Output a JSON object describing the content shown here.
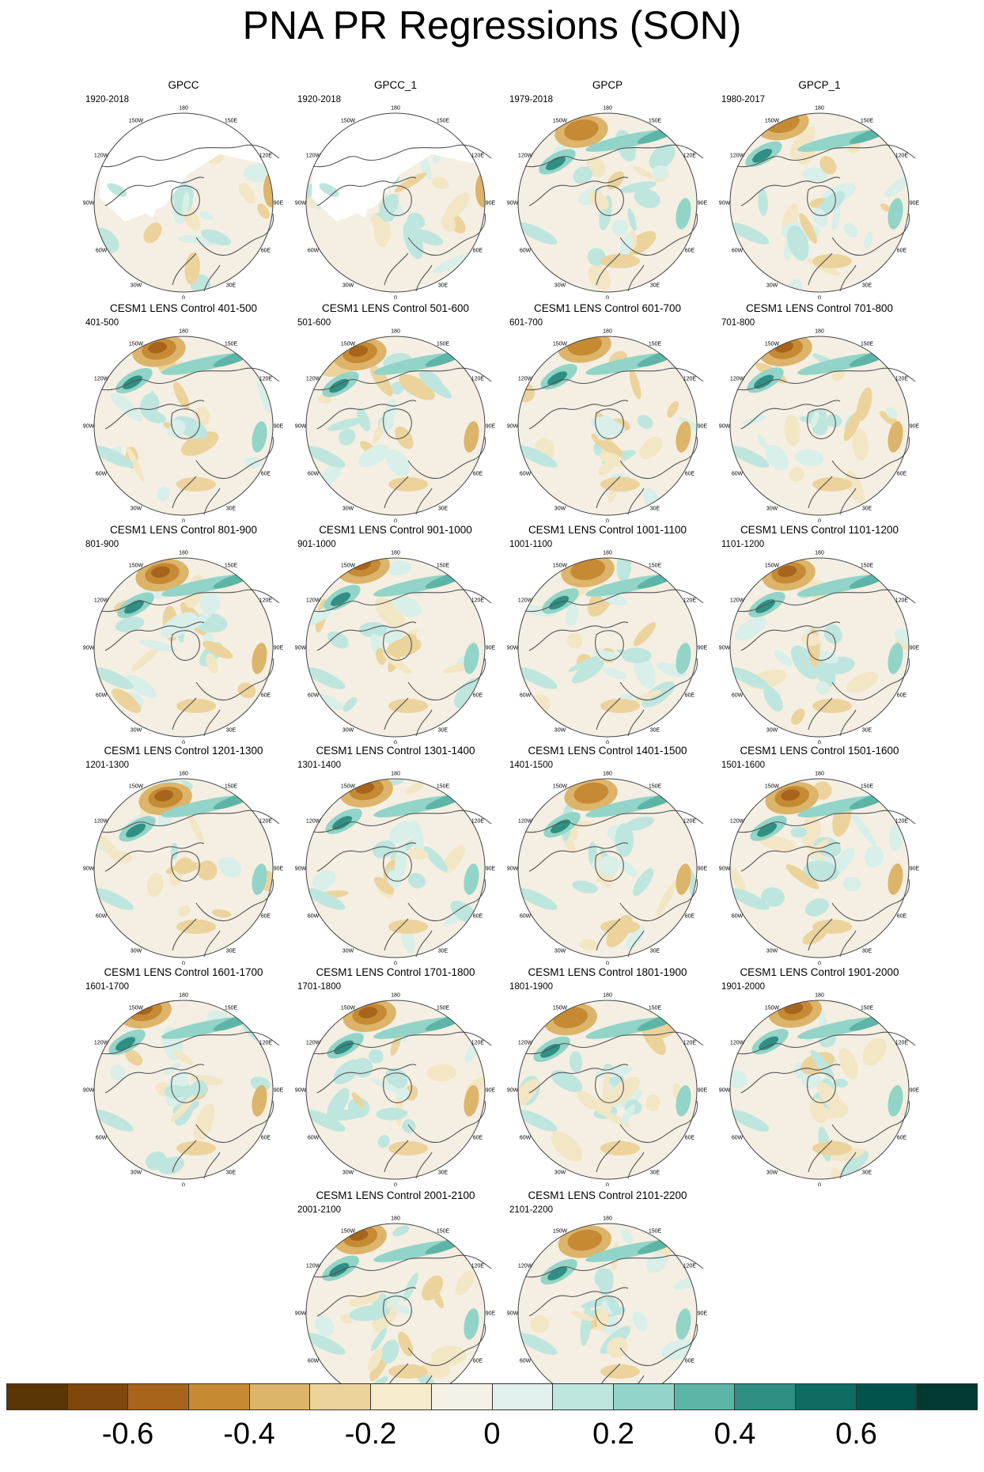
{
  "figure": {
    "title": "PNA PR Regressions (SON)"
  },
  "panels": [
    {
      "title": "GPCC",
      "years": "1920-2018"
    },
    {
      "title": "GPCC_1",
      "years": "1920-2018"
    },
    {
      "title": "GPCP",
      "years": "1979-2018"
    },
    {
      "title": "GPCP_1",
      "years": "1980-2017"
    },
    {
      "title": "CESM1 LENS Control 401-500",
      "years": "401-500"
    },
    {
      "title": "CESM1 LENS Control 501-600",
      "years": "501-600"
    },
    {
      "title": "CESM1 LENS Control 601-700",
      "years": "601-700"
    },
    {
      "title": "CESM1 LENS Control 701-800",
      "years": "701-800"
    },
    {
      "title": "CESM1 LENS Control 801-900",
      "years": "801-900"
    },
    {
      "title": "CESM1 LENS Control 901-1000",
      "years": "901-1000"
    },
    {
      "title": "CESM1 LENS Control 1001-1100",
      "years": "1001-1100"
    },
    {
      "title": "CESM1 LENS Control 1101-1200",
      "years": "1101-1200"
    },
    {
      "title": "CESM1 LENS Control 1201-1300",
      "years": "1201-1300"
    },
    {
      "title": "CESM1 LENS Control 1301-1400",
      "years": "1301-1400"
    },
    {
      "title": "CESM1 LENS Control 1401-1500",
      "years": "1401-1500"
    },
    {
      "title": "CESM1 LENS Control 1501-1600",
      "years": "1501-1600"
    },
    {
      "title": "CESM1 LENS Control 1601-1700",
      "years": "1601-1700"
    },
    {
      "title": "CESM1 LENS Control 1701-1800",
      "years": "1701-1800"
    },
    {
      "title": "CESM1 LENS Control 1801-1900",
      "years": "1801-1900"
    },
    {
      "title": "CESM1 LENS Control 1901-2000",
      "years": "1901-2000"
    },
    {
      "title": "CESM1 LENS Control 2001-2100",
      "years": "2001-2100"
    },
    {
      "title": "CESM1 LENS Control 2101-2200",
      "years": "2101-2200"
    }
  ],
  "map": {
    "lon_labels": [
      "180",
      "150E",
      "120E",
      "90E",
      "60E",
      "30E",
      "0",
      "30W",
      "60W",
      "90W",
      "120W",
      "150W"
    ]
  },
  "colorbar": {
    "colors": [
      "#5a3505",
      "#80470c",
      "#a8641a",
      "#c58a33",
      "#dcb46a",
      "#ecd39c",
      "#f6ebcb",
      "#f4f1e6",
      "#e1f0ec",
      "#bfe6de",
      "#92d4c8",
      "#5db5a7",
      "#2f8f83",
      "#0f6c62",
      "#02544b",
      "#013a31"
    ],
    "tick_labels": [
      "-0.6",
      "-0.4",
      "-0.2",
      "0",
      "0.2",
      "0.4",
      "0.6"
    ]
  }
}
